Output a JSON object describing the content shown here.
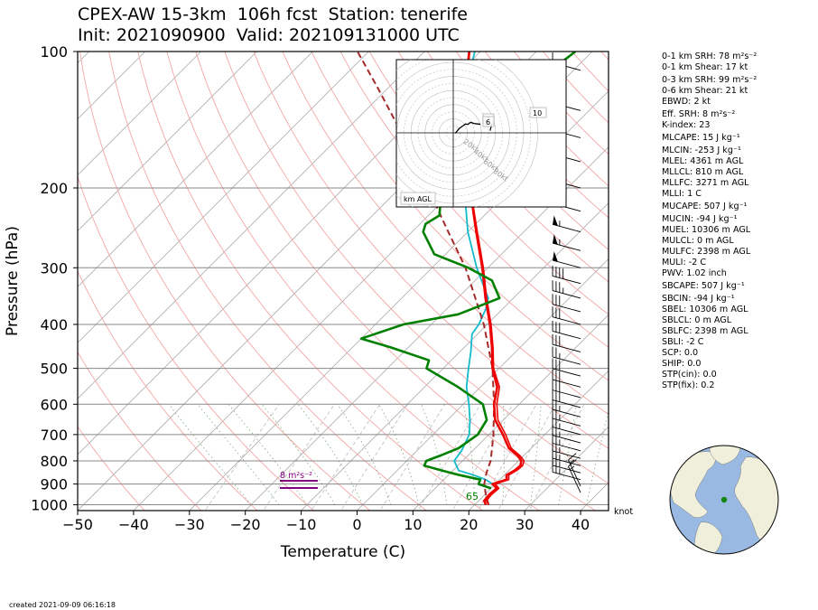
{
  "title": {
    "line1": "CPEX-AW 15-3km  106h fcst  Station: tenerife",
    "line2": "Init: 2021090900  Valid: 202109131000 UTC"
  },
  "created": "created 2021-09-09 06:16:18",
  "chart_data": {
    "type": "skew-t",
    "xlabel": "Temperature (C)",
    "ylabel": "Pressure (hPa)",
    "xlim": [
      -50,
      45
    ],
    "ylim": [
      1030,
      100
    ],
    "yscale": "log",
    "xticks": [
      -50,
      -40,
      -30,
      -20,
      -10,
      0,
      10,
      20,
      30,
      40
    ],
    "yticks": [
      100,
      200,
      300,
      400,
      500,
      600,
      700,
      800,
      900,
      1000
    ],
    "grid": true,
    "barb_units": "knot",
    "colors": {
      "temperature": "#ee0000",
      "dewpoint": "#008000",
      "virtual_temperature": "#11bbcc",
      "parcel": "#a52a2a",
      "srh_bar": "#800080",
      "dry_adiabat": "#f4a6a6",
      "moist_adiabat": "#7aa87a",
      "mixing_ratio": "#bbbbbb",
      "isotherm": "#aaaaaa"
    },
    "series": [
      {
        "key": "temperature",
        "points": [
          [
            1000,
            22
          ],
          [
            980,
            21
          ],
          [
            950,
            20.8
          ],
          [
            920,
            21
          ],
          [
            900,
            19.5
          ],
          [
            880,
            21.2
          ],
          [
            860,
            20.4
          ],
          [
            840,
            21
          ],
          [
            820,
            21.2
          ],
          [
            800,
            20.5
          ],
          [
            780,
            19
          ],
          [
            750,
            16
          ],
          [
            700,
            12.5
          ],
          [
            650,
            8.5
          ],
          [
            600,
            5.5
          ],
          [
            550,
            3
          ],
          [
            500,
            -1.2
          ],
          [
            450,
            -5
          ],
          [
            400,
            -9.5
          ],
          [
            350,
            -15
          ],
          [
            300,
            -21
          ],
          [
            250,
            -28.5
          ],
          [
            200,
            -37.5
          ],
          [
            170,
            -43
          ],
          [
            150,
            -48.5
          ],
          [
            130,
            -53
          ],
          [
            120,
            -56
          ],
          [
            110,
            -59
          ],
          [
            100,
            -62
          ]
        ]
      },
      {
        "key": "virtual_temperature",
        "points": [
          [
            1000,
            22.5
          ],
          [
            980,
            21.4
          ],
          [
            950,
            21.2
          ],
          [
            920,
            21.4
          ],
          [
            900,
            20
          ],
          [
            880,
            21.6
          ],
          [
            860,
            20.8
          ],
          [
            840,
            21.4
          ],
          [
            820,
            21.6
          ],
          [
            800,
            21
          ],
          [
            780,
            19.4
          ],
          [
            750,
            16.4
          ],
          [
            700,
            13
          ],
          [
            650,
            9
          ],
          [
            600,
            6
          ],
          [
            550,
            3.4
          ],
          [
            500,
            -1
          ],
          [
            450,
            -4.8
          ],
          [
            400,
            -9.3
          ],
          [
            350,
            -14.8
          ],
          [
            300,
            -20.8
          ],
          [
            250,
            -28.3
          ],
          [
            200,
            -37.4
          ],
          [
            170,
            -42.9
          ],
          [
            150,
            -48.4
          ],
          [
            130,
            -52.9
          ],
          [
            120,
            -55.9
          ],
          [
            110,
            -58.9
          ],
          [
            100,
            -61.9
          ]
        ]
      },
      {
        "key": "dewpoint",
        "points": [
          [
            920,
            20
          ],
          [
            900,
            17
          ],
          [
            880,
            16.5
          ],
          [
            860,
            12
          ],
          [
            840,
            8
          ],
          [
            820,
            4
          ],
          [
            800,
            3.5
          ],
          [
            780,
            5
          ],
          [
            750,
            7
          ],
          [
            700,
            8
          ],
          [
            650,
            7
          ],
          [
            600,
            3.5
          ],
          [
            550,
            -4
          ],
          [
            500,
            -13
          ],
          [
            480,
            -14
          ],
          [
            450,
            -23
          ],
          [
            430,
            -30
          ],
          [
            400,
            -25
          ],
          [
            380,
            -17
          ],
          [
            350,
            -12.5
          ],
          [
            320,
            -17
          ],
          [
            300,
            -23.5
          ],
          [
            280,
            -32
          ],
          [
            250,
            -38
          ],
          [
            240,
            -39
          ],
          [
            230,
            -38
          ],
          [
            210,
            -41
          ],
          [
            200,
            -42
          ],
          [
            190,
            -43.5
          ],
          [
            180,
            -45
          ],
          [
            160,
            -45.5
          ],
          [
            140,
            -46
          ],
          [
            130,
            -45
          ],
          [
            120,
            -44.5
          ],
          [
            110,
            -44
          ],
          [
            100,
            -43
          ]
        ]
      },
      {
        "key": "dewpoint_virtual",
        "points": [
          [
            920,
            21
          ],
          [
            900,
            19.5
          ],
          [
            880,
            17.5
          ],
          [
            860,
            14.5
          ],
          [
            840,
            11
          ],
          [
            800,
            8.5
          ],
          [
            760,
            8
          ],
          [
            700,
            6.5
          ],
          [
            650,
            4
          ],
          [
            600,
            1
          ],
          [
            550,
            -2.5
          ],
          [
            500,
            -5.5
          ],
          [
            460,
            -8
          ],
          [
            420,
            -11
          ],
          [
            400,
            -11.5
          ],
          [
            370,
            -13
          ],
          [
            350,
            -14.5
          ],
          [
            300,
            -22
          ],
          [
            250,
            -30
          ],
          [
            200,
            -38.5
          ],
          [
            170,
            -43.5
          ],
          [
            150,
            -48.5
          ],
          [
            130,
            -53
          ],
          [
            120,
            -56.5
          ],
          [
            110,
            -58.5
          ],
          [
            100,
            -61
          ]
        ]
      },
      {
        "key": "parcel",
        "points": [
          [
            1000,
            22.5
          ],
          [
            950,
            20.2
          ],
          [
            900,
            18
          ],
          [
            850,
            16.4
          ],
          [
            800,
            15
          ],
          [
            750,
            13
          ],
          [
            700,
            10.8
          ],
          [
            600,
            5.5
          ],
          [
            500,
            -1.2
          ],
          [
            400,
            -10.6
          ],
          [
            300,
            -24
          ],
          [
            250,
            -33.5
          ],
          [
            200,
            -45
          ],
          [
            150,
            -60
          ],
          [
            120,
            -72
          ],
          [
            100,
            -82
          ]
        ]
      }
    ],
    "annotations": [
      {
        "text": "65",
        "pressure": 960,
        "temperature": 19
      }
    ],
    "srh_bar": {
      "label": "8 m²s⁻²"
    },
    "hodograph": {
      "rings_kt": [
        20,
        40,
        60,
        80
      ],
      "ring_labels": [
        "20kt",
        "40kt",
        "60kt",
        "80kt"
      ],
      "label": "km AGL",
      "height_labels": [
        "2",
        "6",
        "10"
      ],
      "trace_kt": [
        [
          4,
          -1
        ],
        [
          9,
          5
        ],
        [
          12,
          9
        ],
        [
          14,
          10
        ],
        [
          18,
          13
        ],
        [
          25,
          18
        ],
        [
          30,
          17
        ],
        [
          33,
          20
        ],
        [
          36,
          21
        ],
        [
          42,
          19
        ],
        [
          49,
          18
        ],
        [
          52,
          18
        ],
        [
          55,
          17
        ]
      ],
      "segment_kt": [
        [
          29,
          -3
        ],
        [
          47,
          5
        ]
      ]
    },
    "barbs": [
      {
        "p": 110,
        "spd": 10,
        "dir": 285
      },
      {
        "p": 135,
        "spd": 55,
        "dir": 285
      },
      {
        "p": 155,
        "spd": 55,
        "dir": 285
      },
      {
        "p": 175,
        "spd": 55,
        "dir": 285
      },
      {
        "p": 200,
        "spd": 60,
        "dir": 285
      },
      {
        "p": 225,
        "spd": 55,
        "dir": 285
      },
      {
        "p": 250,
        "spd": 55,
        "dir": 285
      },
      {
        "p": 275,
        "spd": 55,
        "dir": 285
      },
      {
        "p": 300,
        "spd": 50,
        "dir": 285
      },
      {
        "p": 325,
        "spd": 40,
        "dir": 285
      },
      {
        "p": 350,
        "spd": 35,
        "dir": 285
      },
      {
        "p": 375,
        "spd": 30,
        "dir": 285
      },
      {
        "p": 400,
        "spd": 30,
        "dir": 285
      },
      {
        "p": 430,
        "spd": 30,
        "dir": 285
      },
      {
        "p": 460,
        "spd": 30,
        "dir": 285
      },
      {
        "p": 490,
        "spd": 25,
        "dir": 285
      },
      {
        "p": 520,
        "spd": 30,
        "dir": 285
      },
      {
        "p": 550,
        "spd": 30,
        "dir": 285
      },
      {
        "p": 580,
        "spd": 30,
        "dir": 285
      },
      {
        "p": 610,
        "spd": 30,
        "dir": 285
      },
      {
        "p": 640,
        "spd": 25,
        "dir": 285
      },
      {
        "p": 670,
        "spd": 25,
        "dir": 285
      },
      {
        "p": 700,
        "spd": 25,
        "dir": 285
      },
      {
        "p": 730,
        "spd": 25,
        "dir": 285
      },
      {
        "p": 760,
        "spd": 25,
        "dir": 285
      },
      {
        "p": 790,
        "spd": 25,
        "dir": 285
      },
      {
        "p": 820,
        "spd": 25,
        "dir": 285
      },
      {
        "p": 850,
        "spd": 25,
        "dir": 285
      },
      {
        "p": 880,
        "spd": 25,
        "dir": 285
      },
      {
        "p": 910,
        "spd": 15,
        "dir": 335
      },
      {
        "p": 940,
        "spd": 15,
        "dir": 335
      }
    ]
  },
  "indices": [
    {
      "text": "0-1 km SRH: 78 m²s⁻²",
      "gap": false
    },
    {
      "text": "0-1 km Shear: 17 kt",
      "gap": false
    },
    {
      "text": "0-3 km SRH: 99 m²s⁻²",
      "gap": true
    },
    {
      "text": "0-6 km Shear: 21 kt",
      "gap": false
    },
    {
      "text": "EBWD: 2 kt",
      "gap": false
    },
    {
      "text": "Eff. SRH: 8 m²s⁻²",
      "gap": true
    },
    {
      "text": "K-index: 23",
      "gap": false
    },
    {
      "text": "MLCAPE: 15 J kg⁻¹",
      "gap": true
    },
    {
      "text": "MLCIN: -253 J kg⁻¹",
      "gap": true
    },
    {
      "text": "MLEL: 4361 m AGL",
      "gap": false
    },
    {
      "text": "MLLCL: 810 m AGL",
      "gap": false
    },
    {
      "text": "MLLFC: 3271 m AGL",
      "gap": false
    },
    {
      "text": "MLLI: 1 C",
      "gap": false
    },
    {
      "text": "MUCAPE: 507 J kg⁻¹",
      "gap": true
    },
    {
      "text": "MUCIN: -94 J kg⁻¹",
      "gap": true
    },
    {
      "text": "MUEL: 10306 m AGL",
      "gap": false
    },
    {
      "text": "MULCL: 0 m AGL",
      "gap": false
    },
    {
      "text": "MULFC: 2398 m AGL",
      "gap": false
    },
    {
      "text": "MULI: -2 C",
      "gap": false
    },
    {
      "text": "PWV: 1.02 inch",
      "gap": false
    },
    {
      "text": "SBCAPE: 507 J kg⁻¹",
      "gap": true
    },
    {
      "text": "SBCIN: -94 J kg⁻¹",
      "gap": true
    },
    {
      "text": "SBEL: 10306 m AGL",
      "gap": false
    },
    {
      "text": "SBLCL: 0 m AGL",
      "gap": false
    },
    {
      "text": "SBLFC: 2398 m AGL",
      "gap": false
    },
    {
      "text": "SBLI: -2 C",
      "gap": false
    },
    {
      "text": "SCP: 0.0",
      "gap": false
    },
    {
      "text": "SHIP: 0.0",
      "gap": false
    },
    {
      "text": "STP(cin): 0.0",
      "gap": false
    },
    {
      "text": "STP(fix): 0.2",
      "gap": false
    }
  ],
  "globe": {
    "ocean": "#99b9e2",
    "land": "#efefdb",
    "marker": "#118811"
  }
}
